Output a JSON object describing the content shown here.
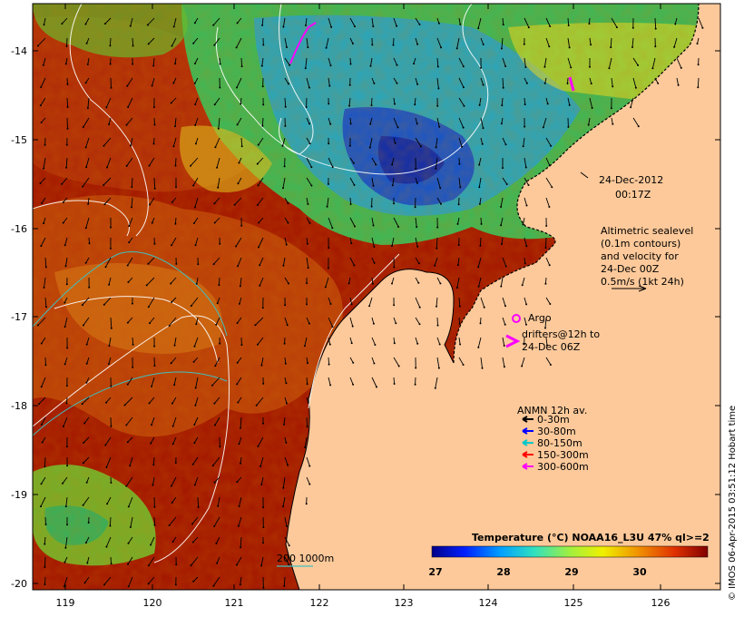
{
  "map": {
    "x_ticks": [
      "119",
      "120",
      "121",
      "122",
      "123",
      "124",
      "125",
      "126"
    ],
    "y_ticks": [
      "-14",
      "-15",
      "-16",
      "-17",
      "-18",
      "-19",
      "-20"
    ],
    "date_line1": "24-Dec-2012",
    "date_line2": "00:17Z",
    "altimetry_lines": [
      "Altimetric sealevel",
      "(0.1m contours)",
      "and velocity for",
      "24-Dec 00Z",
      "0.5m/s (1kt 24h)"
    ],
    "argo_label": "Argo",
    "drifters_line1": "drifters@12h to",
    "drifters_line2": "24-Dec 06Z",
    "anmn_title": "ANMN 12h av.",
    "anmn_items": [
      {
        "label": "0-30m",
        "color": "#000000"
      },
      {
        "label": "30-80m",
        "color": "#0000ff"
      },
      {
        "label": "80-150m",
        "color": "#00c8c8"
      },
      {
        "label": "150-300m",
        "color": "#ff0000"
      },
      {
        "label": "300-600m",
        "color": "#ff00ff"
      }
    ],
    "isobath_label": "200  1000m",
    "colorbar_title": "Temperature (°C) NOAA16_L3U 47% ql>=2",
    "colorbar_ticks": [
      "27",
      "28",
      "29",
      "30"
    ],
    "credit": "© IMOS 06-Apr-2015 03:51:12 Hobart time",
    "colors": {
      "land": "#fdc99a",
      "sea_warm": "#a31600",
      "sea_cold": "#1240d0",
      "isobath": "#40c0c0"
    }
  }
}
